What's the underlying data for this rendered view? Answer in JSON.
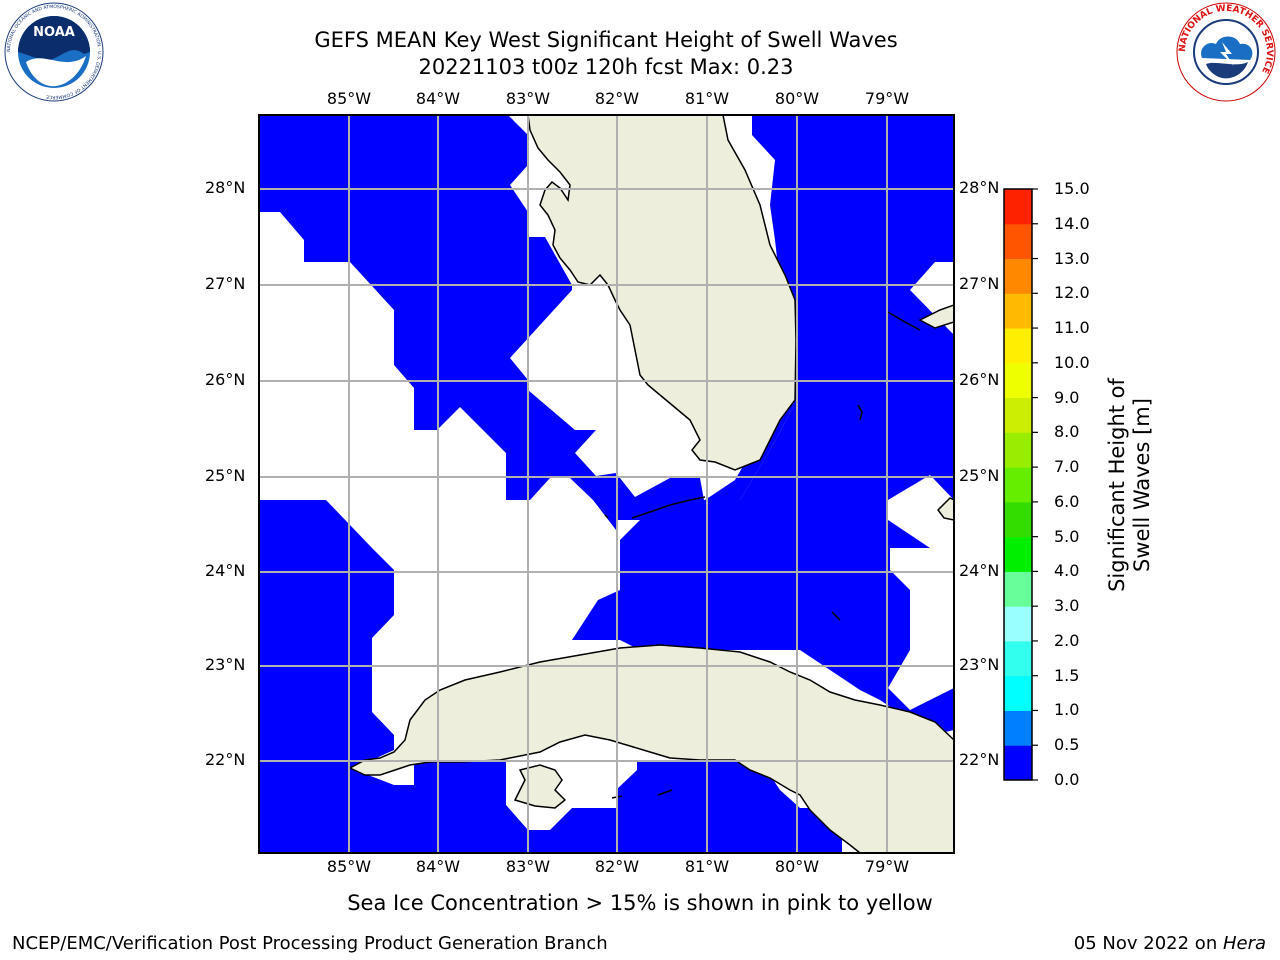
{
  "header": {
    "title_line1": "GEFS MEAN Key West Significant Height of Swell Waves",
    "title_line2": "20221103 t00z 120h fcst   Max: 0.23"
  },
  "map": {
    "lon_labels": [
      "85°W",
      "84°W",
      "83°W",
      "82°W",
      "81°W",
      "80°W",
      "79°W"
    ],
    "lat_labels": [
      "28°N",
      "27°N",
      "26°N",
      "25°N",
      "24°N",
      "23°N",
      "22°N"
    ],
    "extent": {
      "lon_min": -86.0,
      "lon_max": -78.25,
      "lat_min": 21.0,
      "lat_max": 28.75
    },
    "colors": {
      "ocean_field": "#0000ff",
      "no_data": "#ffffff",
      "land": "#eeeedd",
      "grid": "#b0b0b0",
      "coast": "#000000"
    }
  },
  "colorbar": {
    "label": "Significant Height of Swell Waves [m]",
    "ticks": [
      "0.0",
      "0.5",
      "1.0",
      "1.5",
      "2.0",
      "3.0",
      "4.0",
      "5.0",
      "6.0",
      "7.0",
      "8.0",
      "9.0",
      "10.0",
      "11.0",
      "12.0",
      "13.0",
      "14.0",
      "15.0"
    ],
    "colors": [
      "#0000ff",
      "#0080ff",
      "#00ffff",
      "#33ffee",
      "#99ffff",
      "#66ff99",
      "#00ee00",
      "#33dd00",
      "#66ee00",
      "#99ee00",
      "#ccee00",
      "#eeff00",
      "#ffee00",
      "#ffbb00",
      "#ff8800",
      "#ff5500",
      "#ff2200"
    ]
  },
  "footer": {
    "ice_note": "Sea Ice Concentration > 15% is shown in pink to yellow",
    "credit": "NCEP/EMC/Verification Post Processing Product Generation Branch",
    "date": "05 Nov 2022 on ",
    "machine": "Hera"
  },
  "logos": {
    "left": {
      "name": "NOAA",
      "ring_text": "NATIONAL OCEANIC AND ATMOSPHERIC ADMINISTRATION · U.S. DEPARTMENT OF COMMERCE"
    },
    "right": {
      "name": "NATIONAL WEATHER SERVICE"
    }
  }
}
